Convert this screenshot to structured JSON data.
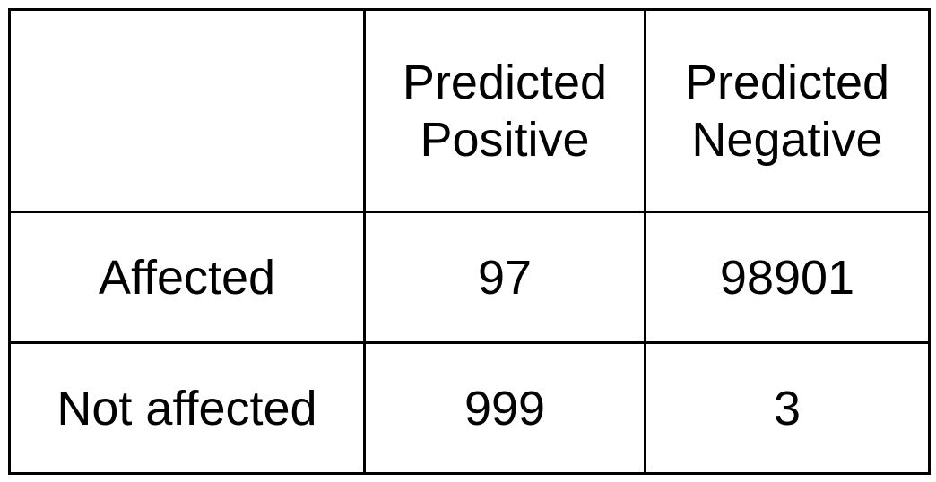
{
  "table": {
    "corner": "",
    "columns": [
      {
        "line1": "Predicted",
        "line2": "Positive"
      },
      {
        "line1": "Predicted",
        "line2": "Negative"
      }
    ],
    "rows": [
      {
        "label": "Affected",
        "values": [
          "97",
          "98901"
        ]
      },
      {
        "label": "Not affected",
        "values": [
          "999",
          "3"
        ]
      }
    ]
  }
}
